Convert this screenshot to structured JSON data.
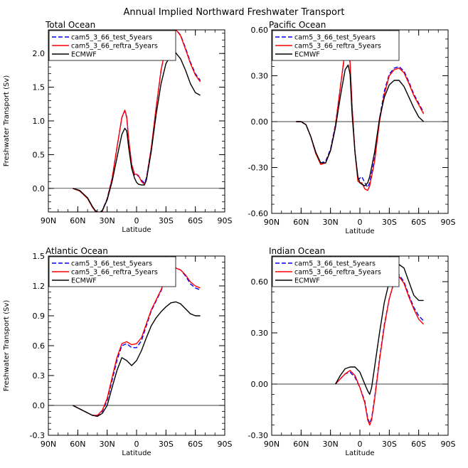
{
  "figure_title": "Annual Implied Northward Freshwater Transport",
  "chart_data": [
    {
      "type": "line",
      "title": "Total Ocean",
      "xlabel": "Latitude",
      "ylabel": "Freshwater Transport (Sv)",
      "xlim": [
        90,
        -90
      ],
      "ylim": [
        -0.35,
        2.35
      ],
      "x_ticks": [
        90,
        60,
        30,
        0,
        -30,
        -60,
        -90
      ],
      "x_tick_labels": [
        "90N",
        "60N",
        "30N",
        "0",
        "30S",
        "60S",
        "90S"
      ],
      "y_ticks": [
        0.0,
        0.5,
        1.0,
        1.5,
        2.0
      ],
      "y_tick_labels": [
        "0.0",
        "0.5",
        "1.0",
        "1.5",
        "2.0"
      ],
      "legend": [
        "cam5_3_66_test_5years",
        "cam5_3_66_reftra_5years",
        "ECMWF"
      ],
      "series": [
        {
          "name": "cam5_3_66_test_5years",
          "color": "#0000ff",
          "dash": "dashed",
          "x": [
            65,
            58,
            50,
            45,
            42,
            38,
            35,
            30,
            25,
            20,
            15,
            12,
            10,
            8,
            5,
            2,
            0,
            -2,
            -5,
            -8,
            -10,
            -15,
            -20,
            -25,
            -30,
            -35,
            -40,
            -45,
            -50,
            -55,
            -60,
            -65
          ],
          "y": [
            0.0,
            -0.04,
            -0.15,
            -0.28,
            -0.34,
            -0.36,
            -0.33,
            -0.15,
            0.15,
            0.6,
            1.05,
            1.15,
            1.05,
            0.7,
            0.35,
            0.2,
            0.2,
            0.18,
            0.12,
            0.08,
            0.15,
            0.6,
            1.2,
            1.75,
            2.1,
            2.3,
            2.36,
            2.27,
            2.08,
            1.87,
            1.7,
            1.6
          ]
        },
        {
          "name": "cam5_3_66_reftra_5years",
          "color": "#ff0000",
          "dash": "solid",
          "x": [
            65,
            58,
            50,
            45,
            42,
            38,
            35,
            30,
            25,
            20,
            15,
            12,
            10,
            8,
            5,
            2,
            0,
            -2,
            -5,
            -8,
            -10,
            -15,
            -20,
            -25,
            -30,
            -35,
            -40,
            -45,
            -50,
            -55,
            -60,
            -65
          ],
          "y": [
            0.0,
            -0.04,
            -0.15,
            -0.28,
            -0.34,
            -0.37,
            -0.34,
            -0.16,
            0.14,
            0.6,
            1.05,
            1.16,
            1.06,
            0.72,
            0.36,
            0.21,
            0.21,
            0.19,
            0.1,
            0.06,
            0.13,
            0.6,
            1.2,
            1.75,
            2.1,
            2.3,
            2.36,
            2.26,
            2.06,
            1.85,
            1.68,
            1.58
          ]
        },
        {
          "name": "ECMWF",
          "color": "#000000",
          "dash": "solid",
          "x": [
            65,
            58,
            50,
            45,
            42,
            38,
            35,
            30,
            25,
            20,
            15,
            12,
            10,
            8,
            5,
            2,
            0,
            -2,
            -5,
            -8,
            -10,
            -15,
            -20,
            -25,
            -30,
            -35,
            -40,
            -45,
            -50,
            -55,
            -60,
            -65
          ],
          "y": [
            0.0,
            -0.03,
            -0.14,
            -0.27,
            -0.33,
            -0.36,
            -0.33,
            -0.17,
            0.1,
            0.45,
            0.8,
            0.89,
            0.85,
            0.6,
            0.3,
            0.15,
            0.09,
            0.06,
            0.05,
            0.05,
            0.12,
            0.55,
            1.1,
            1.55,
            1.85,
            1.97,
            2.01,
            1.92,
            1.75,
            1.55,
            1.42,
            1.38
          ]
        }
      ]
    },
    {
      "type": "line",
      "title": "Pacific Ocean",
      "xlabel": "Latitude",
      "ylabel": "",
      "xlim": [
        90,
        -90
      ],
      "ylim": [
        -0.6,
        0.6
      ],
      "x_ticks": [
        90,
        60,
        30,
        0,
        -30,
        -60,
        -90
      ],
      "x_tick_labels": [
        "90N",
        "60N",
        "30N",
        "0",
        "30S",
        "60S",
        "90S"
      ],
      "y_ticks": [
        -0.6,
        -0.3,
        0.0,
        0.3,
        0.6
      ],
      "y_tick_labels": [
        "-0.60",
        "-0.30",
        "0.00",
        "0.30",
        "0.60"
      ],
      "legend": [
        "cam5_3_66_test_5years",
        "cam5_3_66_reftra_5years",
        "ECMWF"
      ],
      "series": [
        {
          "name": "cam5_3_66_test_5years",
          "color": "#0000ff",
          "dash": "dashed",
          "x": [
            65,
            60,
            55,
            50,
            45,
            40,
            35,
            30,
            25,
            20,
            15,
            12,
            10,
            8,
            5,
            2,
            0,
            -2,
            -5,
            -8,
            -10,
            -15,
            -20,
            -25,
            -30,
            -35,
            -40,
            -45,
            -50,
            -55,
            -60,
            -65
          ],
          "y": [
            0.0,
            0.0,
            -0.02,
            -0.1,
            -0.21,
            -0.27,
            -0.26,
            -0.18,
            -0.02,
            0.22,
            0.46,
            0.49,
            0.38,
            0.1,
            -0.2,
            -0.38,
            -0.37,
            -0.36,
            -0.4,
            -0.43,
            -0.4,
            -0.24,
            0.02,
            0.2,
            0.31,
            0.35,
            0.36,
            0.33,
            0.26,
            0.18,
            0.12,
            0.06
          ]
        },
        {
          "name": "cam5_3_66_reftra_5years",
          "color": "#ff0000",
          "dash": "solid",
          "x": [
            65,
            60,
            55,
            50,
            45,
            40,
            35,
            30,
            25,
            20,
            15,
            12,
            10,
            8,
            5,
            2,
            0,
            -2,
            -5,
            -8,
            -10,
            -15,
            -20,
            -25,
            -30,
            -35,
            -40,
            -45,
            -50,
            -55,
            -60,
            -65
          ],
          "y": [
            0.0,
            0.0,
            -0.02,
            -0.1,
            -0.21,
            -0.28,
            -0.27,
            -0.19,
            -0.03,
            0.22,
            0.47,
            0.5,
            0.39,
            0.1,
            -0.2,
            -0.39,
            -0.4,
            -0.4,
            -0.44,
            -0.45,
            -0.42,
            -0.26,
            0.0,
            0.18,
            0.3,
            0.34,
            0.35,
            0.32,
            0.25,
            0.17,
            0.11,
            0.05
          ]
        },
        {
          "name": "ECMWF",
          "color": "#000000",
          "dash": "solid",
          "x": [
            65,
            60,
            55,
            50,
            45,
            40,
            35,
            30,
            25,
            20,
            15,
            12,
            10,
            8,
            5,
            2,
            0,
            -2,
            -5,
            -8,
            -10,
            -15,
            -20,
            -25,
            -30,
            -35,
            -40,
            -45,
            -50,
            -55,
            -60,
            -65
          ],
          "y": [
            0.0,
            0.0,
            -0.02,
            -0.1,
            -0.2,
            -0.27,
            -0.27,
            -0.19,
            -0.04,
            0.16,
            0.34,
            0.37,
            0.31,
            0.05,
            -0.2,
            -0.36,
            -0.4,
            -0.41,
            -0.42,
            -0.4,
            -0.36,
            -0.2,
            0.02,
            0.16,
            0.24,
            0.27,
            0.27,
            0.23,
            0.16,
            0.09,
            0.03,
            0.0
          ]
        }
      ]
    },
    {
      "type": "line",
      "title": "Atlantic Ocean",
      "xlabel": "Latitude",
      "ylabel": "Freshwater Transport (Sv)",
      "xlim": [
        90,
        -90
      ],
      "ylim": [
        -0.3,
        1.5
      ],
      "x_ticks": [
        90,
        60,
        30,
        0,
        -30,
        -60,
        -90
      ],
      "x_tick_labels": [
        "90N",
        "60N",
        "30N",
        "0",
        "30S",
        "60S",
        "90S"
      ],
      "y_ticks": [
        -0.3,
        0.0,
        0.3,
        0.6,
        0.9,
        1.2,
        1.5
      ],
      "y_tick_labels": [
        "-0.3",
        "0.0",
        "0.3",
        "0.6",
        "0.9",
        "1.2",
        "1.5"
      ],
      "legend": [
        "cam5_3_66_test_5years",
        "cam5_3_66_reftra_5years",
        "ECMWF"
      ],
      "series": [
        {
          "name": "cam5_3_66_test_5years",
          "color": "#0000ff",
          "dash": "dashed",
          "x": [
            65,
            55,
            45,
            40,
            35,
            30,
            25,
            20,
            15,
            10,
            5,
            0,
            -5,
            -10,
            -15,
            -20,
            -25,
            -30,
            -35,
            -40,
            -45,
            -50,
            -55,
            -60,
            -65
          ],
          "y": [
            0.0,
            -0.05,
            -0.1,
            -0.1,
            -0.06,
            0.05,
            0.25,
            0.45,
            0.6,
            0.62,
            0.58,
            0.58,
            0.65,
            0.8,
            0.95,
            1.05,
            1.15,
            1.27,
            1.34,
            1.38,
            1.36,
            1.3,
            1.22,
            1.18,
            1.16
          ]
        },
        {
          "name": "cam5_3_66_reftra_5years",
          "color": "#ff0000",
          "dash": "solid",
          "x": [
            65,
            55,
            45,
            40,
            35,
            30,
            25,
            20,
            15,
            10,
            5,
            0,
            -5,
            -10,
            -15,
            -20,
            -25,
            -30,
            -35,
            -40,
            -45,
            -50,
            -55,
            -60,
            -65
          ],
          "y": [
            0.0,
            -0.05,
            -0.1,
            -0.1,
            -0.05,
            0.07,
            0.28,
            0.48,
            0.62,
            0.64,
            0.61,
            0.62,
            0.68,
            0.82,
            0.96,
            1.06,
            1.16,
            1.28,
            1.35,
            1.38,
            1.36,
            1.31,
            1.24,
            1.2,
            1.18
          ]
        },
        {
          "name": "ECMWF",
          "color": "#000000",
          "dash": "solid",
          "x": [
            65,
            55,
            45,
            40,
            35,
            30,
            25,
            20,
            15,
            10,
            5,
            0,
            -5,
            -10,
            -15,
            -20,
            -25,
            -30,
            -35,
            -40,
            -45,
            -50,
            -55,
            -60,
            -65
          ],
          "y": [
            0.0,
            -0.05,
            -0.1,
            -0.11,
            -0.08,
            0.0,
            0.18,
            0.35,
            0.48,
            0.45,
            0.4,
            0.45,
            0.55,
            0.68,
            0.8,
            0.88,
            0.94,
            0.99,
            1.03,
            1.04,
            1.02,
            0.97,
            0.92,
            0.9,
            0.9
          ]
        }
      ]
    },
    {
      "type": "line",
      "title": "Indian Ocean",
      "xlabel": "Latitude",
      "ylabel": "",
      "xlim": [
        90,
        -90
      ],
      "ylim": [
        -0.3,
        0.75
      ],
      "x_ticks": [
        90,
        60,
        30,
        0,
        -30,
        -60,
        -90
      ],
      "x_tick_labels": [
        "90N",
        "60N",
        "30N",
        "0",
        "30S",
        "60S",
        "90S"
      ],
      "y_ticks": [
        -0.3,
        0.0,
        0.3,
        0.6
      ],
      "y_tick_labels": [
        "-0.30",
        "0.00",
        "0.30",
        "0.60"
      ],
      "legend": [
        "cam5_3_66_test_5years",
        "cam5_3_66_reftra_5years",
        "ECMWF"
      ],
      "series": [
        {
          "name": "cam5_3_66_test_5years",
          "color": "#0000ff",
          "dash": "dashed",
          "x": [
            25,
            20,
            15,
            10,
            5,
            0,
            -5,
            -8,
            -10,
            -12,
            -15,
            -20,
            -25,
            -30,
            -35,
            -40,
            -45,
            -50,
            -55,
            -60,
            -65
          ],
          "y": [
            0.0,
            0.03,
            0.06,
            0.07,
            0.04,
            -0.02,
            -0.1,
            -0.2,
            -0.23,
            -0.2,
            -0.08,
            0.15,
            0.35,
            0.5,
            0.6,
            0.64,
            0.6,
            0.52,
            0.45,
            0.4,
            0.37
          ]
        },
        {
          "name": "cam5_3_66_reftra_5years",
          "color": "#ff0000",
          "dash": "solid",
          "x": [
            25,
            20,
            15,
            10,
            5,
            0,
            -5,
            -8,
            -10,
            -12,
            -15,
            -20,
            -25,
            -30,
            -35,
            -40,
            -45,
            -50,
            -55,
            -60,
            -65
          ],
          "y": [
            0.0,
            0.03,
            0.06,
            0.08,
            0.05,
            -0.02,
            -0.11,
            -0.21,
            -0.24,
            -0.21,
            -0.09,
            0.14,
            0.34,
            0.5,
            0.6,
            0.63,
            0.59,
            0.51,
            0.44,
            0.38,
            0.35
          ]
        },
        {
          "name": "ECMWF",
          "color": "#000000",
          "dash": "solid",
          "x": [
            25,
            20,
            15,
            10,
            5,
            0,
            -5,
            -8,
            -10,
            -12,
            -15,
            -20,
            -25,
            -30,
            -35,
            -40,
            -45,
            -50,
            -55,
            -60,
            -65
          ],
          "y": [
            0.0,
            0.05,
            0.09,
            0.1,
            0.1,
            0.07,
            0.0,
            -0.04,
            -0.06,
            -0.02,
            0.1,
            0.3,
            0.48,
            0.6,
            0.67,
            0.7,
            0.68,
            0.6,
            0.52,
            0.49,
            0.49
          ]
        }
      ]
    }
  ]
}
